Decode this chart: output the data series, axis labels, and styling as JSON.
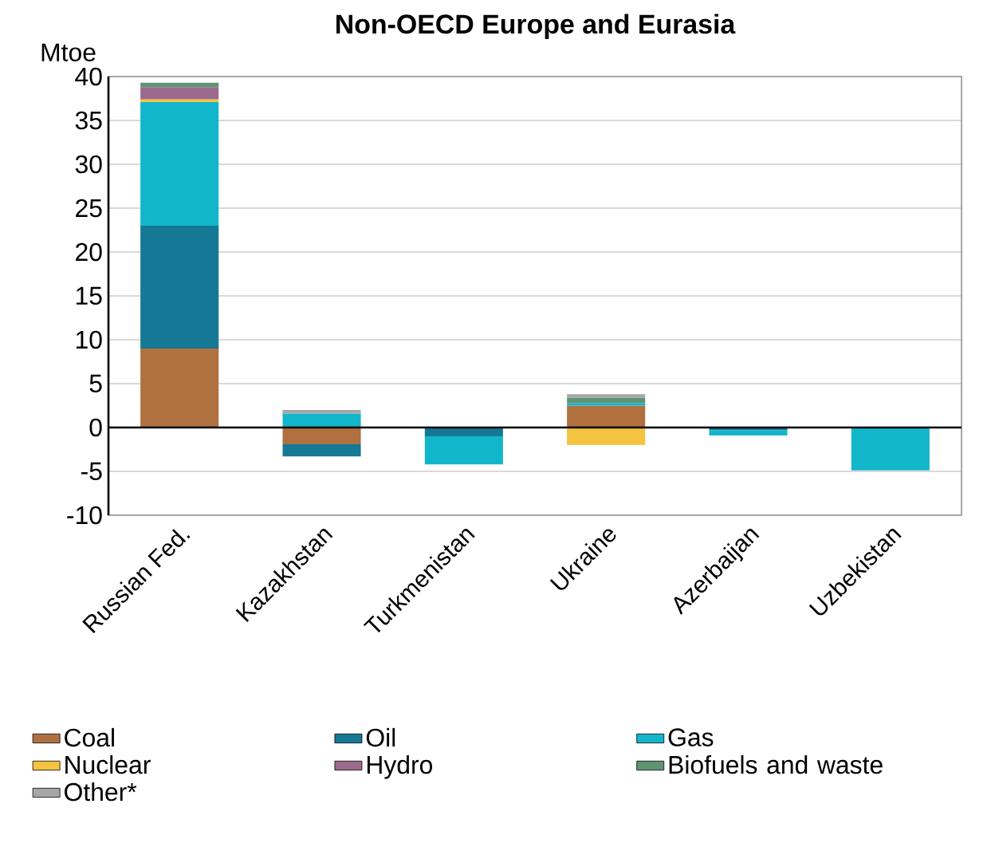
{
  "chart_data": {
    "type": "bar",
    "title": "Non-OECD Europe and Eurasia",
    "ylabel": "Mtoe",
    "stacked": true,
    "grid": "y",
    "legend": "bottom",
    "categories": [
      "Russian Fed.",
      "Kazakhstan",
      "Turkmenistan",
      "Ukraine",
      "Azerbaijan",
      "Uzbekistan"
    ],
    "ylim": [
      -10,
      40
    ],
    "yticks": [
      -10,
      -5,
      0,
      5,
      10,
      15,
      20,
      25,
      30,
      35,
      40
    ],
    "series": [
      {
        "name": "Coal",
        "color": "#b07040",
        "values": [
          9.0,
          -1.9,
          null,
          2.5,
          null,
          null
        ]
      },
      {
        "name": "Oil",
        "color": "#157894",
        "values": [
          14.0,
          -1.4,
          -1.0,
          null,
          -0.3,
          null
        ]
      },
      {
        "name": "Gas",
        "color": "#12b6ca",
        "values": [
          14.1,
          1.6,
          -3.2,
          0.3,
          -0.6,
          -4.9
        ]
      },
      {
        "name": "Nuclear",
        "color": "#f5c342",
        "values": [
          0.3,
          null,
          null,
          -2.0,
          null,
          null
        ]
      },
      {
        "name": "Hydro",
        "color": "#9b6a8c",
        "values": [
          1.4,
          null,
          null,
          null,
          null,
          null
        ]
      },
      {
        "name": "Biofuels and waste",
        "color": "#5e9473",
        "values": [
          0.5,
          null,
          null,
          0.6,
          null,
          null
        ]
      },
      {
        "name": "Other*",
        "color": "#a6a6a6",
        "values": [
          null,
          0.4,
          null,
          0.4,
          null,
          null
        ]
      }
    ]
  }
}
